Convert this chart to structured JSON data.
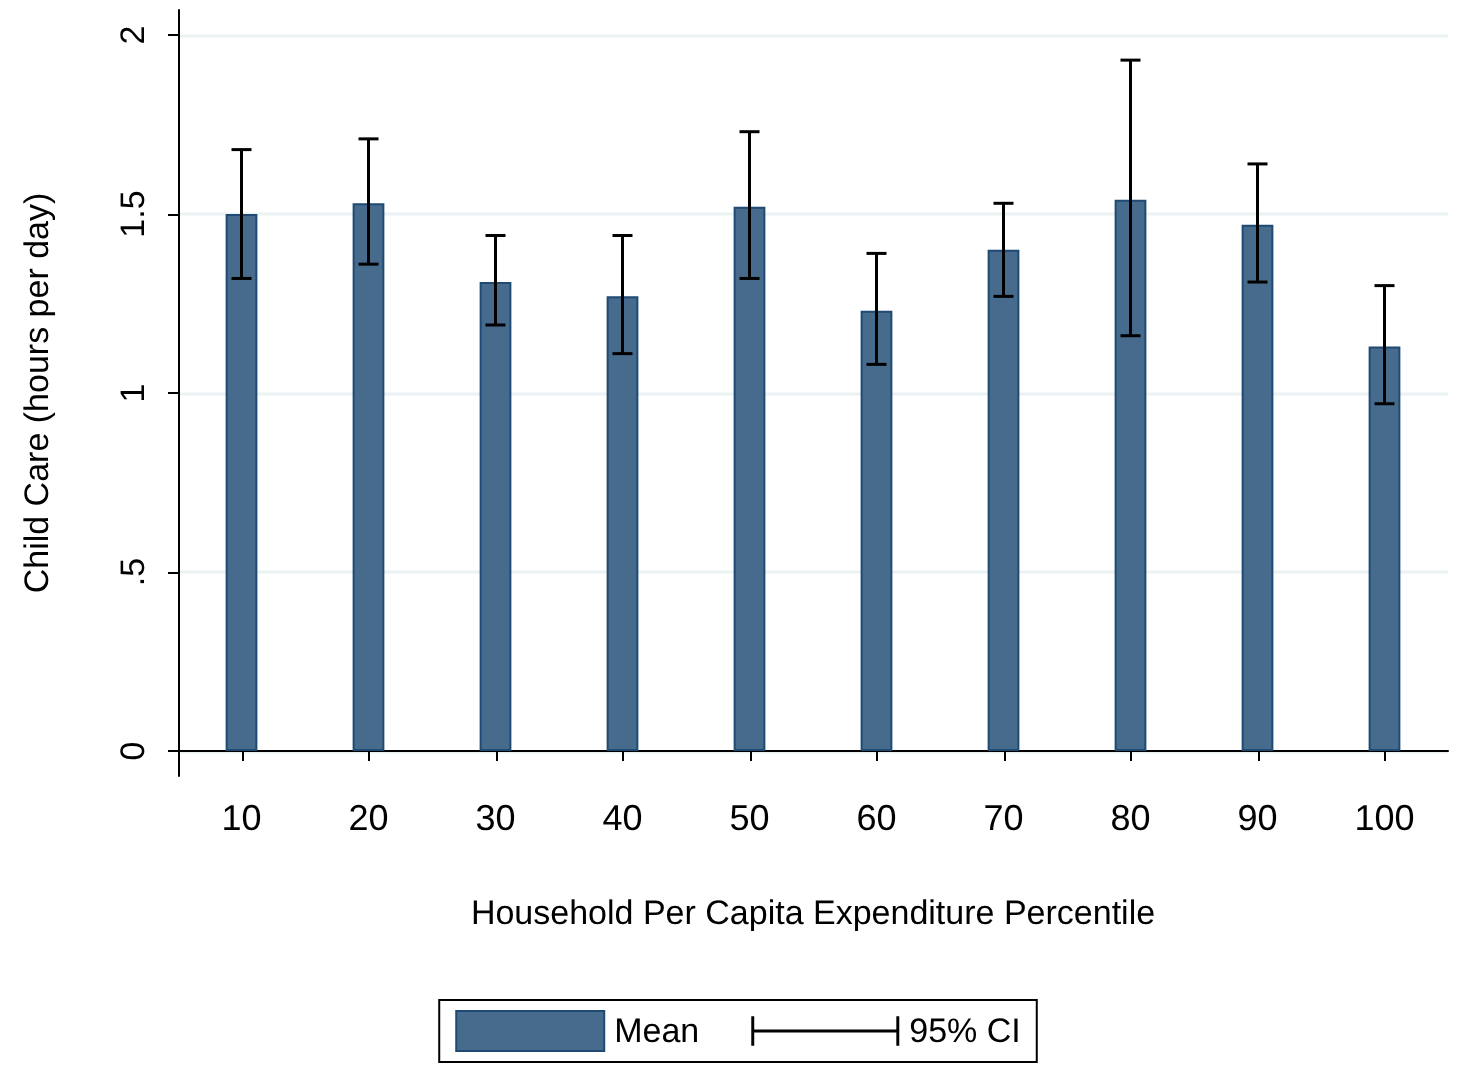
{
  "chart_data": {
    "type": "bar",
    "xlabel": "Household Per Capita Expenditure Percentile",
    "ylabel": "Child Care (hours per day)",
    "categories": [
      "10",
      "20",
      "30",
      "40",
      "50",
      "60",
      "70",
      "80",
      "90",
      "100"
    ],
    "series": [
      {
        "name": "Mean",
        "color": "#476b8c",
        "values": [
          1.5,
          1.53,
          1.31,
          1.27,
          1.52,
          1.23,
          1.4,
          1.54,
          1.47,
          1.13
        ],
        "errors": [
          [
            1.32,
            1.68
          ],
          [
            1.36,
            1.71
          ],
          [
            1.19,
            1.44
          ],
          [
            1.11,
            1.44
          ],
          [
            1.32,
            1.73
          ],
          [
            1.08,
            1.39
          ],
          [
            1.27,
            1.53
          ],
          [
            1.16,
            1.93
          ],
          [
            1.31,
            1.64
          ],
          [
            0.97,
            1.3
          ]
        ]
      }
    ],
    "annotations": [
      "95% CI"
    ],
    "ylim": [
      -0.07,
      2.07
    ],
    "yticks": [
      {
        "value": 0,
        "label": "0"
      },
      {
        "value": 0.5,
        "label": ".5"
      },
      {
        "value": 1,
        "label": "1"
      },
      {
        "value": 1.5,
        "label": "1.5"
      },
      {
        "value": 2,
        "label": "2"
      }
    ],
    "grid": "y",
    "legend": "bottom"
  }
}
